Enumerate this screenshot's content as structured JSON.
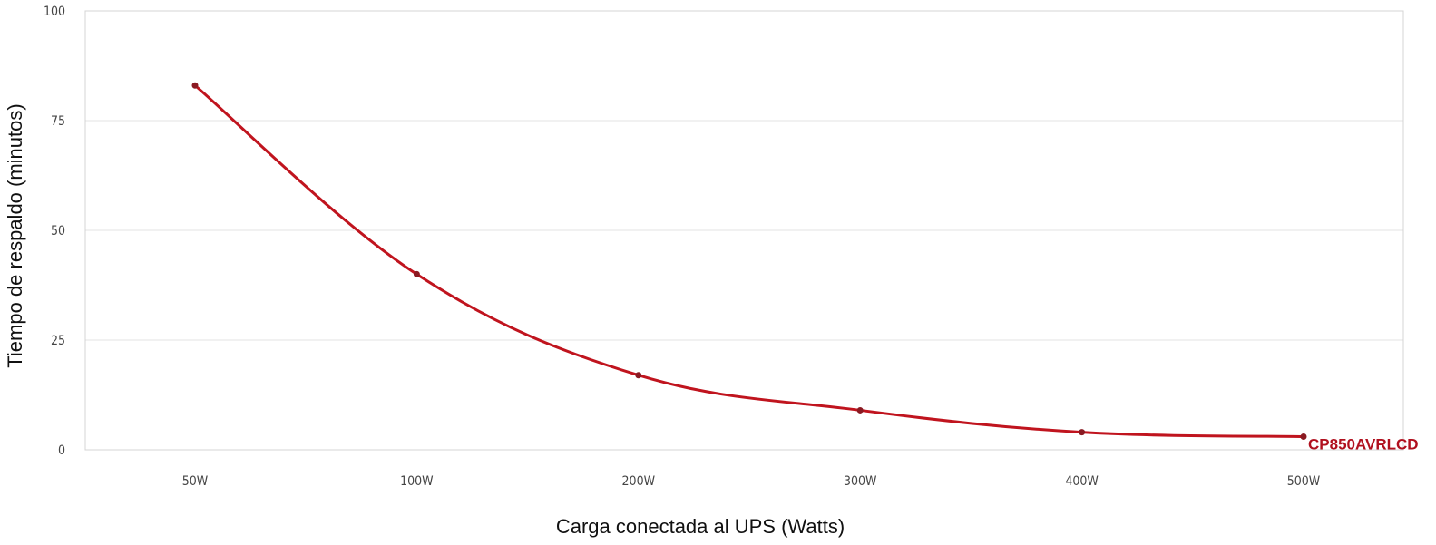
{
  "chart_data": {
    "type": "line",
    "title": "",
    "xlabel": "Carga conectada al UPS (Watts)",
    "ylabel": "Tiempo de respaldo (minutos)",
    "categories": [
      "50W",
      "100W",
      "200W",
      "300W",
      "400W",
      "500W"
    ],
    "yticks": [
      "0",
      "25",
      "50",
      "75",
      "100"
    ],
    "ylim": [
      0,
      100
    ],
    "grid": true,
    "series": [
      {
        "name": "CP850AVRLCD",
        "values": [
          83,
          40,
          17,
          9,
          4,
          3
        ],
        "color": "#c0141e"
      }
    ]
  }
}
